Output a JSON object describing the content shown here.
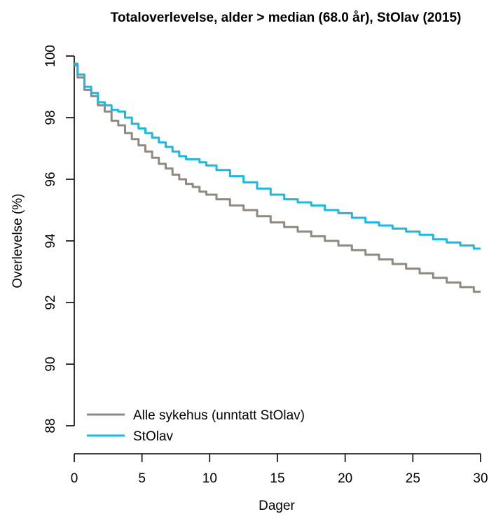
{
  "chart_data": {
    "type": "line",
    "title": "Totaloverlevelse, alder > median (68.0 år), StOlav (2015)",
    "xlabel": "Dager",
    "ylabel": "Overlevelse (%)",
    "xlim": [
      0,
      30
    ],
    "ylim": [
      88,
      100
    ],
    "x_ticks": [
      "0",
      "5",
      "10",
      "15",
      "20",
      "25",
      "30"
    ],
    "y_ticks": [
      "88",
      "90",
      "92",
      "94",
      "96",
      "98",
      "100"
    ],
    "grid": false,
    "legend_position": "bottom-left",
    "series": [
      {
        "name": "Alle sykehus (unntatt StOlav)",
        "color": "#918880",
        "x": [
          0,
          0.5,
          1,
          1.5,
          2,
          2.5,
          3,
          3.5,
          4,
          4.5,
          5,
          5.5,
          6,
          6.5,
          7,
          7.5,
          8,
          8.5,
          9,
          9.5,
          10,
          11,
          12,
          13,
          14,
          15,
          16,
          17,
          18,
          19,
          20,
          21,
          22,
          23,
          24,
          25,
          26,
          27,
          28,
          29,
          30
        ],
        "values": [
          99.7,
          99.3,
          98.9,
          98.7,
          98.4,
          98.2,
          97.9,
          97.75,
          97.5,
          97.3,
          97.1,
          96.9,
          96.7,
          96.5,
          96.35,
          96.15,
          96.0,
          95.85,
          95.75,
          95.6,
          95.5,
          95.35,
          95.15,
          95.0,
          94.8,
          94.6,
          94.45,
          94.3,
          94.15,
          94.0,
          93.85,
          93.7,
          93.55,
          93.4,
          93.25,
          93.1,
          92.95,
          92.8,
          92.65,
          92.5,
          92.35
        ]
      },
      {
        "name": "StOlav",
        "color": "#1cb8e0",
        "x": [
          0,
          0.5,
          1,
          1.5,
          2,
          2.5,
          3,
          3.5,
          4,
          4.5,
          5,
          5.5,
          6,
          6.5,
          7,
          7.5,
          8,
          8.5,
          9,
          9.5,
          10,
          11,
          12,
          13,
          14,
          15,
          16,
          17,
          18,
          19,
          20,
          21,
          22,
          23,
          24,
          25,
          26,
          27,
          28,
          29,
          30
        ],
        "values": [
          99.75,
          99.4,
          99.0,
          98.8,
          98.5,
          98.4,
          98.25,
          98.2,
          98.0,
          97.8,
          97.65,
          97.5,
          97.35,
          97.2,
          97.05,
          96.9,
          96.75,
          96.65,
          96.65,
          96.55,
          96.45,
          96.3,
          96.1,
          95.9,
          95.7,
          95.5,
          95.35,
          95.25,
          95.15,
          95.0,
          94.9,
          94.75,
          94.6,
          94.5,
          94.4,
          94.3,
          94.2,
          94.05,
          93.95,
          93.85,
          93.75
        ]
      }
    ]
  }
}
